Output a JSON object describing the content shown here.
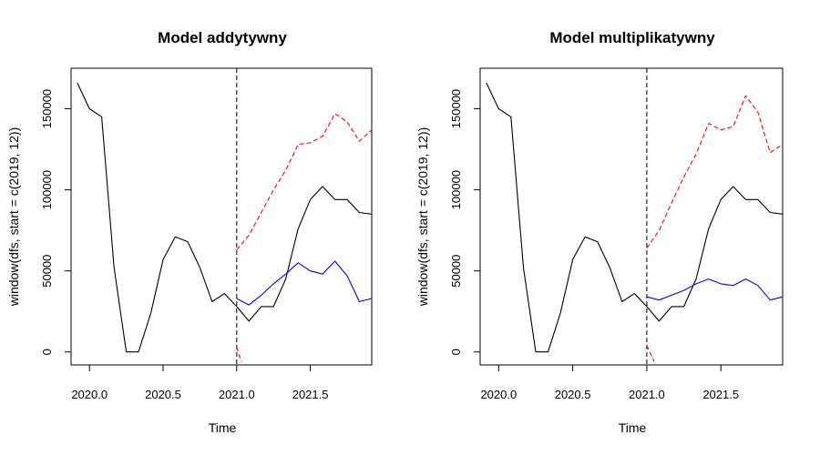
{
  "chart_data": [
    {
      "type": "line",
      "title": "Model addytywny",
      "xlabel": "Time",
      "ylabel": "window(dfs, start = c(2019, 12))",
      "xlim": [
        2019.875,
        2021.917
      ],
      "ylim": [
        -8000,
        175000
      ],
      "x_ticks": [
        2020.0,
        2020.5,
        2021.0,
        2021.5
      ],
      "x_tick_labels": [
        "2020.0",
        "2020.5",
        "2021.0",
        "2021.5"
      ],
      "y_ticks": [
        0,
        50000,
        100000,
        150000
      ],
      "y_tick_labels": [
        "0",
        "50000",
        "100000",
        "150000"
      ],
      "grid": false,
      "vline": {
        "x": 2021.0,
        "style": "dashed",
        "color": "#000000"
      },
      "series": [
        {
          "role": "actual",
          "color": "#000000",
          "style": "solid",
          "x": [
            2019.917,
            2020.0,
            2020.083,
            2020.167,
            2020.25,
            2020.333,
            2020.417,
            2020.5,
            2020.583,
            2020.667,
            2020.75,
            2020.833,
            2020.917,
            2021.0,
            2021.083,
            2021.167,
            2021.25,
            2021.333,
            2021.417,
            2021.5,
            2021.583,
            2021.667,
            2021.75,
            2021.833,
            2021.917
          ],
          "y": [
            166000,
            150000,
            145000,
            52000,
            0,
            0,
            24000,
            57000,
            71000,
            68000,
            52000,
            31000,
            36000,
            28000,
            19000,
            28000,
            28000,
            45000,
            76000,
            94000,
            102000,
            94000,
            94000,
            86000,
            85000
          ]
        },
        {
          "role": "forecast",
          "color": "#0000ff",
          "style": "solid",
          "x": [
            2021.0,
            2021.083,
            2021.167,
            2021.25,
            2021.333,
            2021.417,
            2021.5,
            2021.583,
            2021.667,
            2021.75,
            2021.833,
            2021.917
          ],
          "y": [
            33000,
            29000,
            35000,
            42000,
            48000,
            55000,
            50000,
            48000,
            56000,
            47000,
            31000,
            33000
          ]
        },
        {
          "role": "upper-bound",
          "color": "#ff0000",
          "style": "dashed",
          "x": [
            2021.0,
            2021.083,
            2021.167,
            2021.25,
            2021.333,
            2021.417,
            2021.5,
            2021.583,
            2021.667,
            2021.75,
            2021.833,
            2021.917
          ],
          "y": [
            63000,
            72000,
            86000,
            100000,
            112000,
            128000,
            129000,
            133000,
            147000,
            142000,
            130000,
            137000
          ]
        },
        {
          "role": "lower-bound",
          "color": "#ff0000",
          "style": "dashed",
          "x": [
            2021.0,
            2021.03
          ],
          "y": [
            3000,
            -6000
          ]
        }
      ]
    },
    {
      "type": "line",
      "title": "Model multiplikatywny",
      "xlabel": "Time",
      "ylabel": "window(dfs, start = c(2019, 12))",
      "xlim": [
        2019.875,
        2021.917
      ],
      "ylim": [
        -8000,
        175000
      ],
      "x_ticks": [
        2020.0,
        2020.5,
        2021.0,
        2021.5
      ],
      "x_tick_labels": [
        "2020.0",
        "2020.5",
        "2021.0",
        "2021.5"
      ],
      "y_ticks": [
        0,
        50000,
        100000,
        150000
      ],
      "y_tick_labels": [
        "0",
        "50000",
        "100000",
        "150000"
      ],
      "grid": false,
      "vline": {
        "x": 2021.0,
        "style": "dashed",
        "color": "#000000"
      },
      "series": [
        {
          "role": "actual",
          "color": "#000000",
          "style": "solid",
          "x": [
            2019.917,
            2020.0,
            2020.083,
            2020.167,
            2020.25,
            2020.333,
            2020.417,
            2020.5,
            2020.583,
            2020.667,
            2020.75,
            2020.833,
            2020.917,
            2021.0,
            2021.083,
            2021.167,
            2021.25,
            2021.333,
            2021.417,
            2021.5,
            2021.583,
            2021.667,
            2021.75,
            2021.833,
            2021.917
          ],
          "y": [
            166000,
            150000,
            145000,
            52000,
            0,
            0,
            24000,
            57000,
            71000,
            68000,
            52000,
            31000,
            36000,
            28000,
            19000,
            28000,
            28000,
            45000,
            76000,
            94000,
            102000,
            94000,
            94000,
            86000,
            85000
          ]
        },
        {
          "role": "forecast",
          "color": "#0000ff",
          "style": "solid",
          "x": [
            2021.0,
            2021.083,
            2021.167,
            2021.25,
            2021.333,
            2021.417,
            2021.5,
            2021.583,
            2021.667,
            2021.75,
            2021.833,
            2021.917
          ],
          "y": [
            34000,
            32000,
            35000,
            38000,
            42000,
            45000,
            42000,
            41000,
            45000,
            41000,
            32000,
            34000
          ]
        },
        {
          "role": "upper-bound",
          "color": "#ff0000",
          "style": "dashed",
          "x": [
            2021.0,
            2021.083,
            2021.167,
            2021.25,
            2021.333,
            2021.417,
            2021.5,
            2021.583,
            2021.667,
            2021.75,
            2021.833,
            2021.917
          ],
          "y": [
            64000,
            75000,
            92000,
            108000,
            122000,
            141000,
            137000,
            139000,
            158000,
            148000,
            123000,
            128000
          ]
        },
        {
          "role": "lower-bound",
          "color": "#ff0000",
          "style": "dashed",
          "x": [
            2021.0,
            2021.05
          ],
          "y": [
            4000,
            -6000
          ]
        }
      ]
    }
  ]
}
